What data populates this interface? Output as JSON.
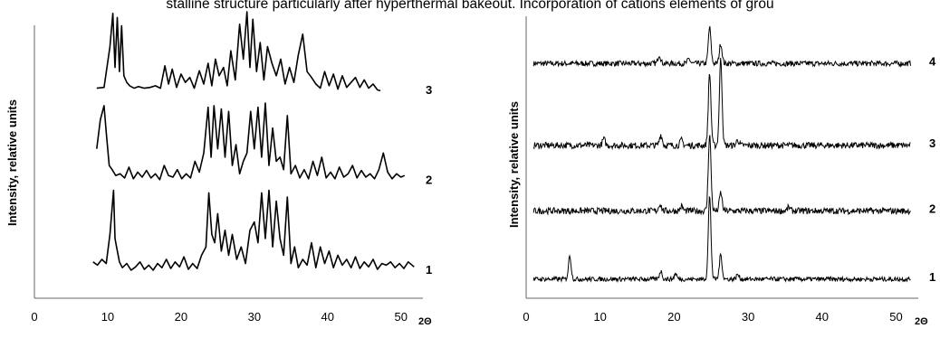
{
  "header": {
    "text": "stalline structure particularly after hyperthermal bakeout. Incorporation of cations elements of grou"
  },
  "chart_data": [
    {
      "type": "line",
      "title": "",
      "ylabel": "Intensity, relative units",
      "xunit": "2Θ",
      "xticks": [
        0,
        10,
        20,
        30,
        40,
        50
      ],
      "xlim": [
        0,
        53
      ],
      "grid": false,
      "series": [
        {
          "name": "3",
          "offset": 0.78,
          "x": [
            8.5,
            9.5,
            10.3,
            10.7,
            11.0,
            11.3,
            11.6,
            11.9,
            12.2,
            12.6,
            13.0,
            13.6,
            14.2,
            15.0,
            15.8,
            16.5,
            17.2,
            17.8,
            18.3,
            18.8,
            19.4,
            20.0,
            20.6,
            21.2,
            21.8,
            22.5,
            23.1,
            23.7,
            24.2,
            24.7,
            25.2,
            25.8,
            26.3,
            26.8,
            27.4,
            28.0,
            28.5,
            29.0,
            29.4,
            29.8,
            30.3,
            30.8,
            31.3,
            31.8,
            32.4,
            33.0,
            33.6,
            34.2,
            34.8,
            35.4,
            36.0,
            36.6,
            37.2,
            37.8,
            38.4,
            39.0,
            39.6,
            40.2,
            40.8,
            41.4,
            42.0,
            42.6,
            43.2,
            43.8,
            44.4,
            45.0,
            45.6,
            46.2,
            46.8,
            47.2
          ],
          "y": [
            0.05,
            0.06,
            0.55,
            0.95,
            0.3,
            0.9,
            0.25,
            0.8,
            0.2,
            0.12,
            0.08,
            0.05,
            0.07,
            0.05,
            0.06,
            0.08,
            0.05,
            0.32,
            0.1,
            0.28,
            0.06,
            0.22,
            0.12,
            0.18,
            0.05,
            0.26,
            0.1,
            0.35,
            0.08,
            0.4,
            0.2,
            0.3,
            0.08,
            0.5,
            0.15,
            0.82,
            0.4,
            0.97,
            0.3,
            0.88,
            0.25,
            0.6,
            0.15,
            0.55,
            0.35,
            0.2,
            0.4,
            0.1,
            0.3,
            0.12,
            0.45,
            0.7,
            0.25,
            0.18,
            0.1,
            0.05,
            0.25,
            0.08,
            0.22,
            0.04,
            0.2,
            0.06,
            0.12,
            0.18,
            0.06,
            0.15,
            0.05,
            0.1,
            0.03,
            0.02
          ]
        },
        {
          "name": "2",
          "offset": 0.44,
          "x": [
            8.5,
            9.0,
            9.5,
            9.8,
            10.2,
            10.6,
            11.1,
            11.7,
            12.3,
            12.9,
            13.5,
            14.1,
            14.7,
            15.3,
            15.9,
            16.5,
            17.1,
            17.7,
            18.3,
            18.9,
            19.5,
            20.1,
            20.7,
            21.3,
            21.9,
            22.5,
            23.1,
            23.7,
            24.1,
            24.5,
            25.0,
            25.5,
            26.0,
            26.5,
            27.0,
            27.5,
            28.0,
            28.5,
            29.0,
            29.5,
            30.0,
            30.5,
            31.0,
            31.5,
            32.0,
            32.5,
            33.0,
            33.5,
            34.0,
            34.5,
            35.0,
            35.6,
            36.2,
            36.8,
            37.4,
            38.0,
            38.6,
            39.2,
            39.8,
            40.4,
            41.0,
            41.6,
            42.2,
            42.8,
            43.4,
            44.0,
            44.6,
            45.2,
            45.8,
            46.4,
            47.0,
            47.6,
            48.2,
            48.8,
            49.4,
            50.0,
            50.5
          ],
          "y": [
            0.4,
            0.75,
            0.92,
            0.6,
            0.2,
            0.15,
            0.08,
            0.1,
            0.05,
            0.18,
            0.04,
            0.12,
            0.06,
            0.14,
            0.05,
            0.1,
            0.03,
            0.2,
            0.08,
            0.06,
            0.15,
            0.04,
            0.1,
            0.05,
            0.25,
            0.12,
            0.35,
            0.9,
            0.3,
            0.92,
            0.4,
            0.88,
            0.3,
            0.85,
            0.2,
            0.45,
            0.1,
            0.25,
            0.35,
            0.85,
            0.4,
            0.9,
            0.3,
            0.95,
            0.2,
            0.65,
            0.25,
            0.3,
            0.15,
            0.8,
            0.1,
            0.2,
            0.05,
            0.15,
            0.04,
            0.25,
            0.08,
            0.3,
            0.05,
            0.12,
            0.04,
            0.18,
            0.06,
            0.1,
            0.2,
            0.05,
            0.14,
            0.06,
            0.1,
            0.04,
            0.15,
            0.35,
            0.12,
            0.04,
            0.1,
            0.06,
            0.08
          ]
        },
        {
          "name": "1",
          "offset": 0.1,
          "x": [
            8.0,
            8.6,
            9.2,
            9.8,
            10.3,
            10.8,
            11.0,
            11.2,
            11.6,
            12.0,
            12.6,
            13.2,
            13.8,
            14.4,
            15.0,
            15.6,
            16.2,
            16.8,
            17.4,
            18.0,
            18.6,
            19.2,
            19.8,
            20.4,
            21.0,
            21.6,
            22.2,
            22.8,
            23.4,
            23.8,
            24.2,
            24.6,
            25.0,
            25.5,
            26.0,
            26.5,
            27.0,
            27.6,
            28.2,
            28.8,
            29.4,
            30.0,
            30.5,
            31.0,
            31.5,
            32.0,
            32.5,
            33.0,
            33.5,
            34.0,
            34.5,
            35.0,
            35.5,
            36.0,
            36.6,
            37.2,
            37.8,
            38.4,
            39.0,
            39.6,
            40.2,
            40.8,
            41.4,
            42.0,
            42.6,
            43.2,
            43.8,
            44.4,
            45.0,
            45.6,
            46.2,
            46.8,
            47.4,
            48.0,
            48.6,
            49.2,
            49.8,
            50.4,
            51.0,
            51.8
          ],
          "y": [
            0.12,
            0.08,
            0.15,
            0.1,
            0.45,
            0.98,
            0.4,
            0.3,
            0.12,
            0.05,
            0.1,
            0.02,
            0.06,
            0.12,
            0.03,
            0.08,
            0.02,
            0.1,
            0.05,
            0.15,
            0.04,
            0.12,
            0.06,
            0.18,
            0.03,
            0.1,
            0.04,
            0.2,
            0.3,
            0.95,
            0.45,
            0.35,
            0.7,
            0.25,
            0.5,
            0.2,
            0.45,
            0.15,
            0.3,
            0.1,
            0.5,
            0.6,
            0.35,
            0.95,
            0.4,
            0.98,
            0.3,
            0.85,
            0.4,
            0.2,
            0.9,
            0.1,
            0.3,
            0.05,
            0.15,
            0.08,
            0.35,
            0.05,
            0.3,
            0.1,
            0.25,
            0.05,
            0.2,
            0.08,
            0.15,
            0.05,
            0.18,
            0.04,
            0.12,
            0.06,
            0.15,
            0.03,
            0.1,
            0.08,
            0.12,
            0.05,
            0.1,
            0.04,
            0.12,
            0.06
          ]
        }
      ]
    },
    {
      "type": "line",
      "title": "",
      "ylabel": "Intensity, relative units",
      "xunit": "2Θ",
      "xticks": [
        0,
        10,
        20,
        30,
        40,
        50
      ],
      "xlim": [
        0,
        53
      ],
      "grid": false,
      "series": [
        {
          "name": "4",
          "offset": 0.86,
          "baseline_noise": 0.03,
          "peaks": [
            [
              18.0,
              0.1
            ],
            [
              24.8,
              0.4
            ],
            [
              26.3,
              0.22
            ],
            [
              22.0,
              0.05
            ]
          ]
        },
        {
          "name": "3",
          "offset": 0.56,
          "baseline_noise": 0.035,
          "peaks": [
            [
              10.5,
              0.07
            ],
            [
              18.2,
              0.12
            ],
            [
              21.0,
              0.06
            ],
            [
              24.8,
              0.8
            ],
            [
              26.3,
              0.95
            ],
            [
              28.6,
              0.06
            ]
          ]
        },
        {
          "name": "2",
          "offset": 0.32,
          "baseline_noise": 0.035,
          "peaks": [
            [
              18.1,
              0.08
            ],
            [
              21.0,
              0.05
            ],
            [
              24.8,
              0.85
            ],
            [
              26.3,
              0.2
            ],
            [
              35.5,
              0.04
            ]
          ]
        },
        {
          "name": "1",
          "offset": 0.07,
          "baseline_noise": 0.025,
          "peaks": [
            [
              5.9,
              0.26
            ],
            [
              18.2,
              0.09
            ],
            [
              20.2,
              0.06
            ],
            [
              24.8,
              0.92
            ],
            [
              26.3,
              0.27
            ],
            [
              28.6,
              0.05
            ]
          ]
        }
      ]
    }
  ]
}
